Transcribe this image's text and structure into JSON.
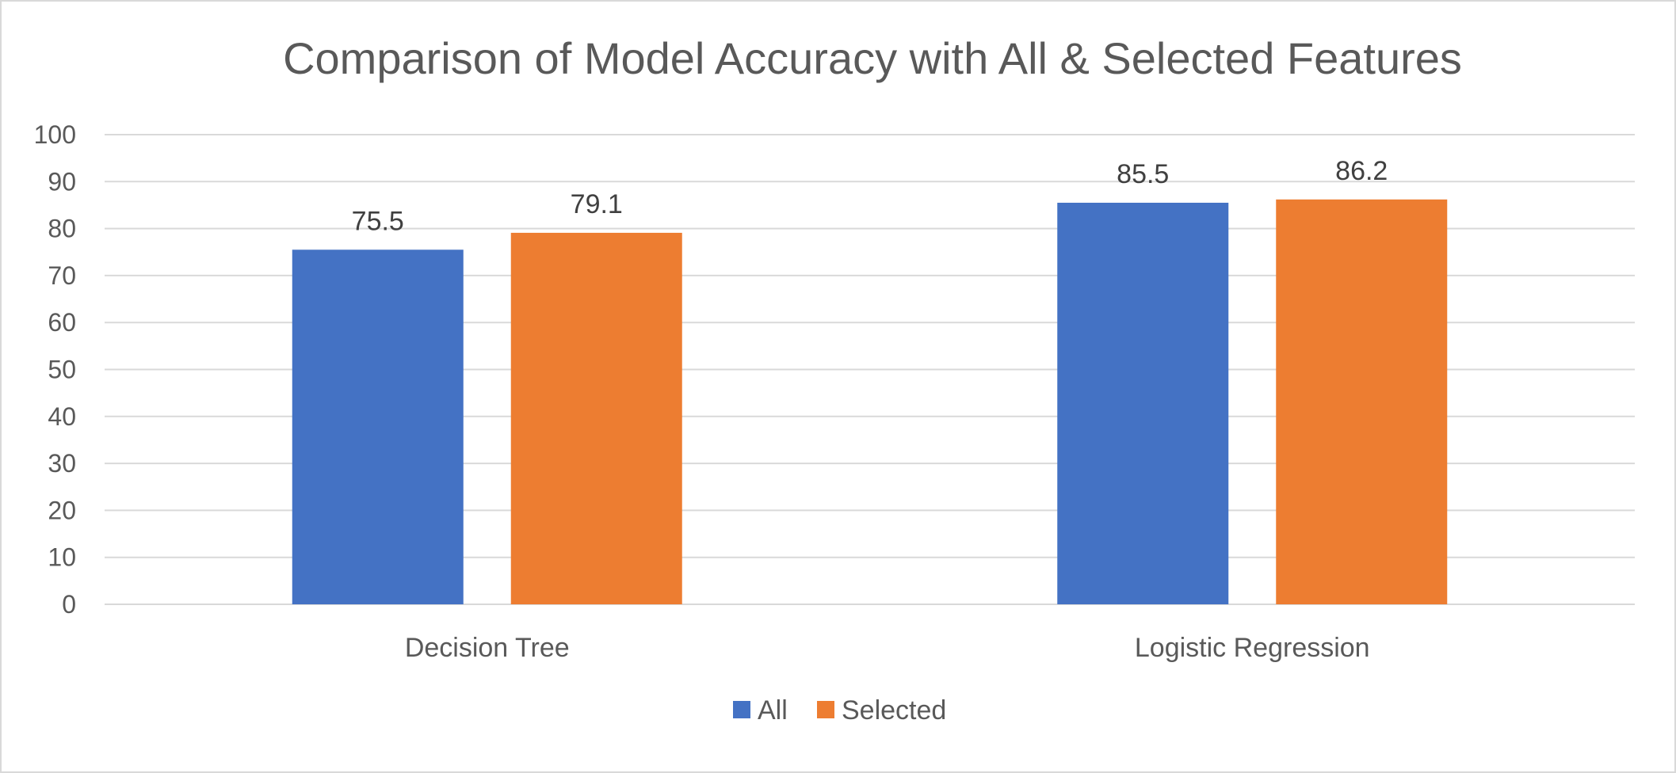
{
  "chart_data": {
    "type": "bar",
    "title": "Comparison of Model Accuracy with All & Selected Features",
    "xlabel": "",
    "ylabel": "",
    "categories": [
      "Decision Tree",
      "Logistic Regression"
    ],
    "series": [
      {
        "name": "All",
        "values": [
          75.5,
          85.5
        ],
        "color": "#4472C4"
      },
      {
        "name": "Selected",
        "values": [
          79.1,
          86.2
        ],
        "color": "#ED7D31"
      }
    ],
    "ylim": [
      0,
      100
    ],
    "yticks": [
      0,
      10,
      20,
      30,
      40,
      50,
      60,
      70,
      80,
      90,
      100
    ],
    "grid": true,
    "data_labels": true,
    "legend_position": "bottom"
  }
}
